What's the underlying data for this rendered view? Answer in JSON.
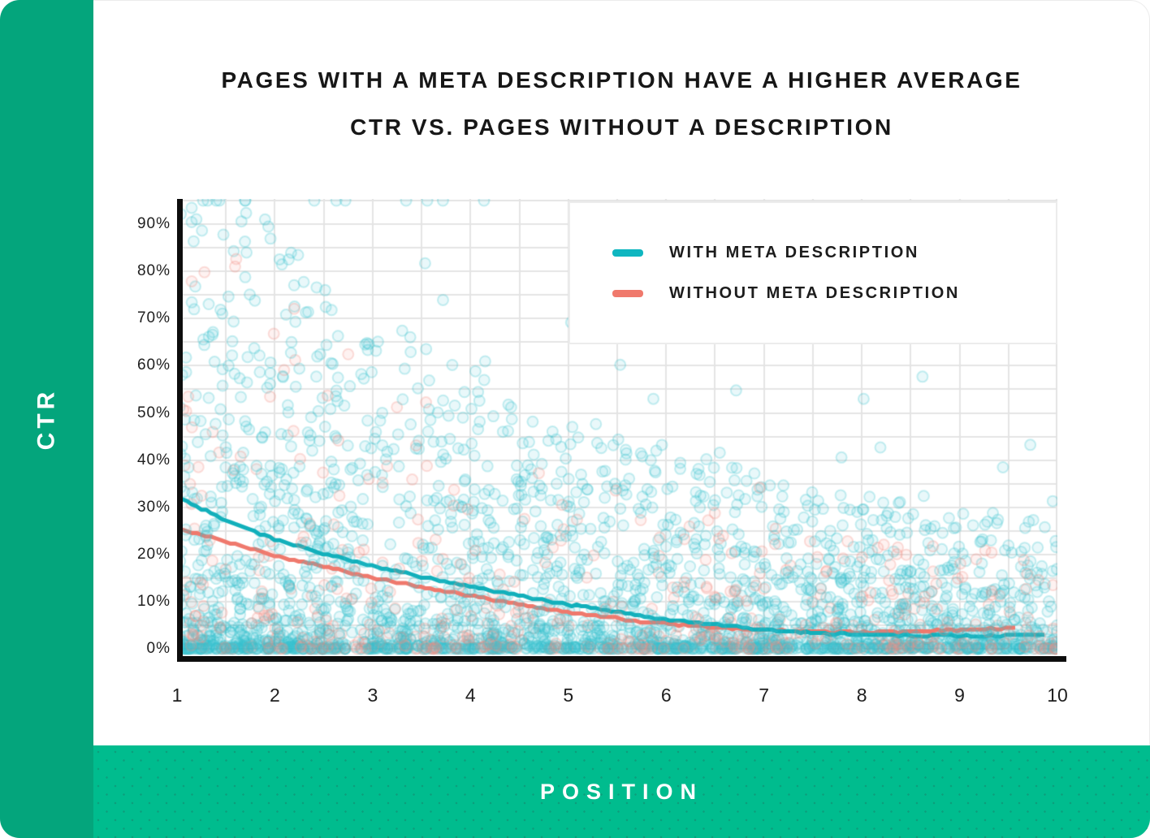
{
  "title": {
    "line1": "PAGES WITH A META DESCRIPTION HAVE A HIGHER AVERAGE",
    "line2": "CTR VS. PAGES WITHOUT A DESCRIPTION"
  },
  "axes": {
    "y_band_label": "CTR",
    "x_band_label": "POSITION"
  },
  "legend": {
    "items": [
      {
        "label": "WITH META DESCRIPTION",
        "color": "#0fb6c0"
      },
      {
        "label": "WITHOUT META DESCRIPTION",
        "color": "#f0796c"
      }
    ]
  },
  "colors": {
    "y_band_green": "#04a57c",
    "x_band_green": "#00bc8e",
    "x_band_dot": "#0c9f7c",
    "axis_black": "#0d0d0d",
    "grid": "#e4e4e4",
    "teal_trend": "#12b0bb",
    "salmon_trend": "#ef796d",
    "teal_point": "#3ac3cd",
    "salmon_point": "#f28c80"
  },
  "chart_data": {
    "type": "scatter",
    "title": "PAGES WITH A META DESCRIPTION HAVE A HIGHER AVERAGE CTR VS. PAGES WITHOUT A DESCRIPTION",
    "xlabel": "POSITION",
    "ylabel": "CTR",
    "x_ticks": [
      1,
      2,
      3,
      4,
      5,
      6,
      7,
      8,
      9,
      10
    ],
    "y_tick_labels": [
      "0%",
      "10%",
      "20%",
      "30%",
      "40%",
      "50%",
      "60%",
      "70%",
      "80%",
      "90%"
    ],
    "y_ticks_pct": [
      0,
      10,
      20,
      30,
      40,
      50,
      60,
      70,
      80,
      90
    ],
    "xlim": [
      1,
      10
    ],
    "ylim_pct": [
      0,
      95.4
    ],
    "grid": {
      "x_step": 0.5,
      "y_step_pct": 5,
      "on": true
    },
    "legend_position": "top-right",
    "series": [
      {
        "name": "WITH META DESCRIPTION",
        "role": "trend",
        "color": "#12b0bb",
        "points_pos_ctr": [
          [
            1,
            32.3
          ],
          [
            1.25,
            29.6
          ],
          [
            1.5,
            27.3
          ],
          [
            1.75,
            25.1
          ],
          [
            2,
            23.2
          ],
          [
            2.5,
            20.2
          ],
          [
            3,
            17.6
          ],
          [
            3.5,
            15.3
          ],
          [
            4,
            13.2
          ],
          [
            4.5,
            11.2
          ],
          [
            5,
            9.4
          ],
          [
            5.5,
            7.8
          ],
          [
            6,
            6.3
          ],
          [
            6.5,
            5.1
          ],
          [
            7,
            4.1
          ],
          [
            7.5,
            3.4
          ],
          [
            8,
            3.0
          ],
          [
            8.5,
            2.8
          ],
          [
            9,
            2.7
          ],
          [
            9.4,
            2.7
          ],
          [
            9.6,
            2.9
          ],
          [
            9.9,
            2.9
          ]
        ]
      },
      {
        "name": "WITHOUT META DESCRIPTION",
        "role": "trend",
        "color": "#ef796d",
        "points_pos_ctr": [
          [
            1,
            25.6
          ],
          [
            1.5,
            22.6
          ],
          [
            2,
            19.8
          ],
          [
            2.5,
            17.4
          ],
          [
            3,
            15.1
          ],
          [
            3.5,
            13.1
          ],
          [
            4,
            11.2
          ],
          [
            4.5,
            9.4
          ],
          [
            5,
            7.8
          ],
          [
            5.5,
            6.4
          ],
          [
            6,
            5.3
          ],
          [
            6.5,
            4.5
          ],
          [
            7,
            4.0
          ],
          [
            7.5,
            3.7
          ],
          [
            8,
            3.5
          ],
          [
            8.3,
            3.6
          ],
          [
            8.7,
            3.8
          ],
          [
            9,
            3.9
          ],
          [
            9.3,
            4.2
          ],
          [
            9.6,
            4.3
          ]
        ]
      }
    ],
    "scatter_cloud": {
      "description": "individual pages as semi-transparent dots; density decays with position and CTR, dense band near 0-6% CTR across all positions",
      "seed": 1337,
      "point_radius": 6.5,
      "fill_alpha": 0.11,
      "stroke_alpha": 0.28,
      "ctr_power": 3,
      "x_power": 1.12,
      "outlier_fraction": 0.02,
      "with_meta": {
        "count": 2700,
        "color": "#3ac3cd",
        "envelope": {
          "base": 92,
          "decay": 0.28,
          "floor": 20,
          "cap": 95
        }
      },
      "without_meta": {
        "count": 520,
        "color": "#f28c80",
        "envelope": {
          "base": 84,
          "decay": 0.3,
          "floor": 14,
          "cap": 88
        }
      }
    }
  }
}
